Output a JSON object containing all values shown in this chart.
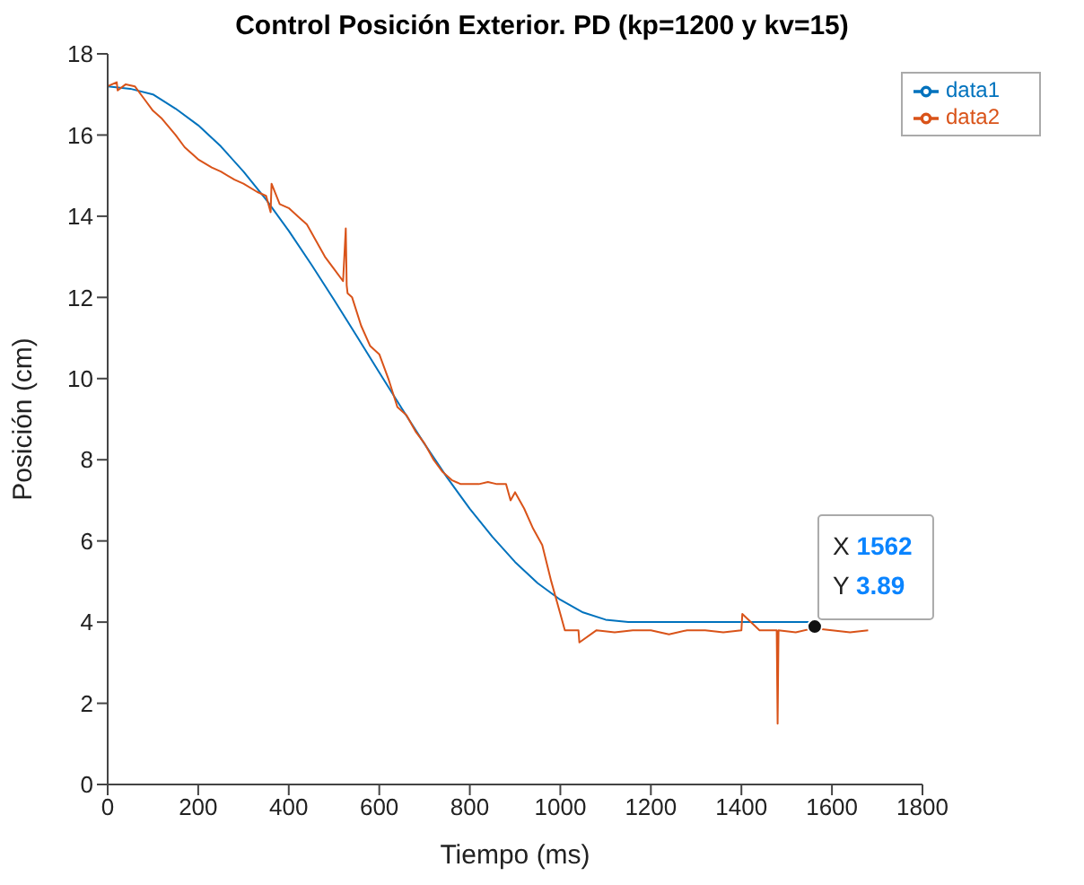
{
  "chart_data": {
    "type": "line",
    "title": "Control Posición Exterior. PD (kp=1200 y kv=15)",
    "xlabel": "Tiempo (ms)",
    "ylabel": "Posición (cm)",
    "xlim": [
      0,
      1800
    ],
    "xticks": [
      0,
      200,
      400,
      600,
      800,
      1000,
      1200,
      1400,
      1600,
      1800
    ],
    "ylim": [
      0,
      18
    ],
    "yticks": [
      0,
      2,
      4,
      6,
      8,
      10,
      12,
      14,
      16,
      18
    ],
    "legend": "top right",
    "marker": "none",
    "line_style": "solid",
    "annotations": [
      {
        "text": "X 1562\nY 3.89",
        "x": 1562,
        "y": 3.89
      }
    ],
    "series": [
      {
        "name": "data1",
        "color": "#0072bd",
        "x": [
          0,
          50,
          100,
          150,
          200,
          250,
          300,
          350,
          400,
          450,
          500,
          550,
          600,
          650,
          700,
          750,
          800,
          850,
          900,
          950,
          1000,
          1050,
          1100,
          1150,
          1560
        ],
        "values": [
          17.2,
          17.14,
          17.0,
          16.65,
          16.24,
          15.72,
          15.1,
          14.41,
          13.64,
          12.81,
          11.94,
          11.05,
          10.15,
          9.26,
          8.39,
          7.56,
          6.79,
          6.1,
          5.48,
          4.96,
          4.55,
          4.24,
          4.06,
          4.0,
          4.0
        ]
      },
      {
        "name": "data2",
        "color": "#d95319",
        "x": [
          0,
          20,
          22,
          40,
          60,
          80,
          100,
          120,
          150,
          170,
          200,
          230,
          250,
          280,
          300,
          330,
          350,
          360,
          362,
          380,
          400,
          420,
          440,
          460,
          480,
          500,
          520,
          526,
          528,
          530,
          540,
          560,
          580,
          600,
          620,
          640,
          660,
          680,
          700,
          720,
          740,
          760,
          780,
          800,
          820,
          840,
          860,
          880,
          890,
          900,
          920,
          940,
          960,
          980,
          1000,
          1010,
          1040,
          1042,
          1080,
          1120,
          1160,
          1200,
          1240,
          1280,
          1320,
          1360,
          1400,
          1402,
          1440,
          1478,
          1480,
          1482,
          1520,
          1560,
          1600,
          1640,
          1680
        ],
        "values": [
          17.2,
          17.3,
          17.1,
          17.25,
          17.2,
          16.9,
          16.6,
          16.4,
          16.0,
          15.7,
          15.4,
          15.2,
          15.1,
          14.9,
          14.8,
          14.6,
          14.5,
          14.1,
          14.8,
          14.3,
          14.2,
          14.0,
          13.8,
          13.4,
          13.0,
          12.7,
          12.4,
          13.7,
          12.3,
          12.1,
          12.0,
          11.3,
          10.8,
          10.6,
          10.0,
          9.3,
          9.1,
          8.7,
          8.4,
          8.0,
          7.7,
          7.5,
          7.4,
          7.4,
          7.4,
          7.45,
          7.4,
          7.4,
          7.0,
          7.2,
          6.8,
          6.3,
          5.9,
          5.0,
          4.2,
          3.8,
          3.8,
          3.5,
          3.8,
          3.75,
          3.8,
          3.8,
          3.7,
          3.8,
          3.8,
          3.75,
          3.8,
          4.2,
          3.8,
          3.8,
          1.5,
          3.8,
          3.75,
          3.85,
          3.8,
          3.75,
          3.8
        ]
      }
    ]
  }
}
